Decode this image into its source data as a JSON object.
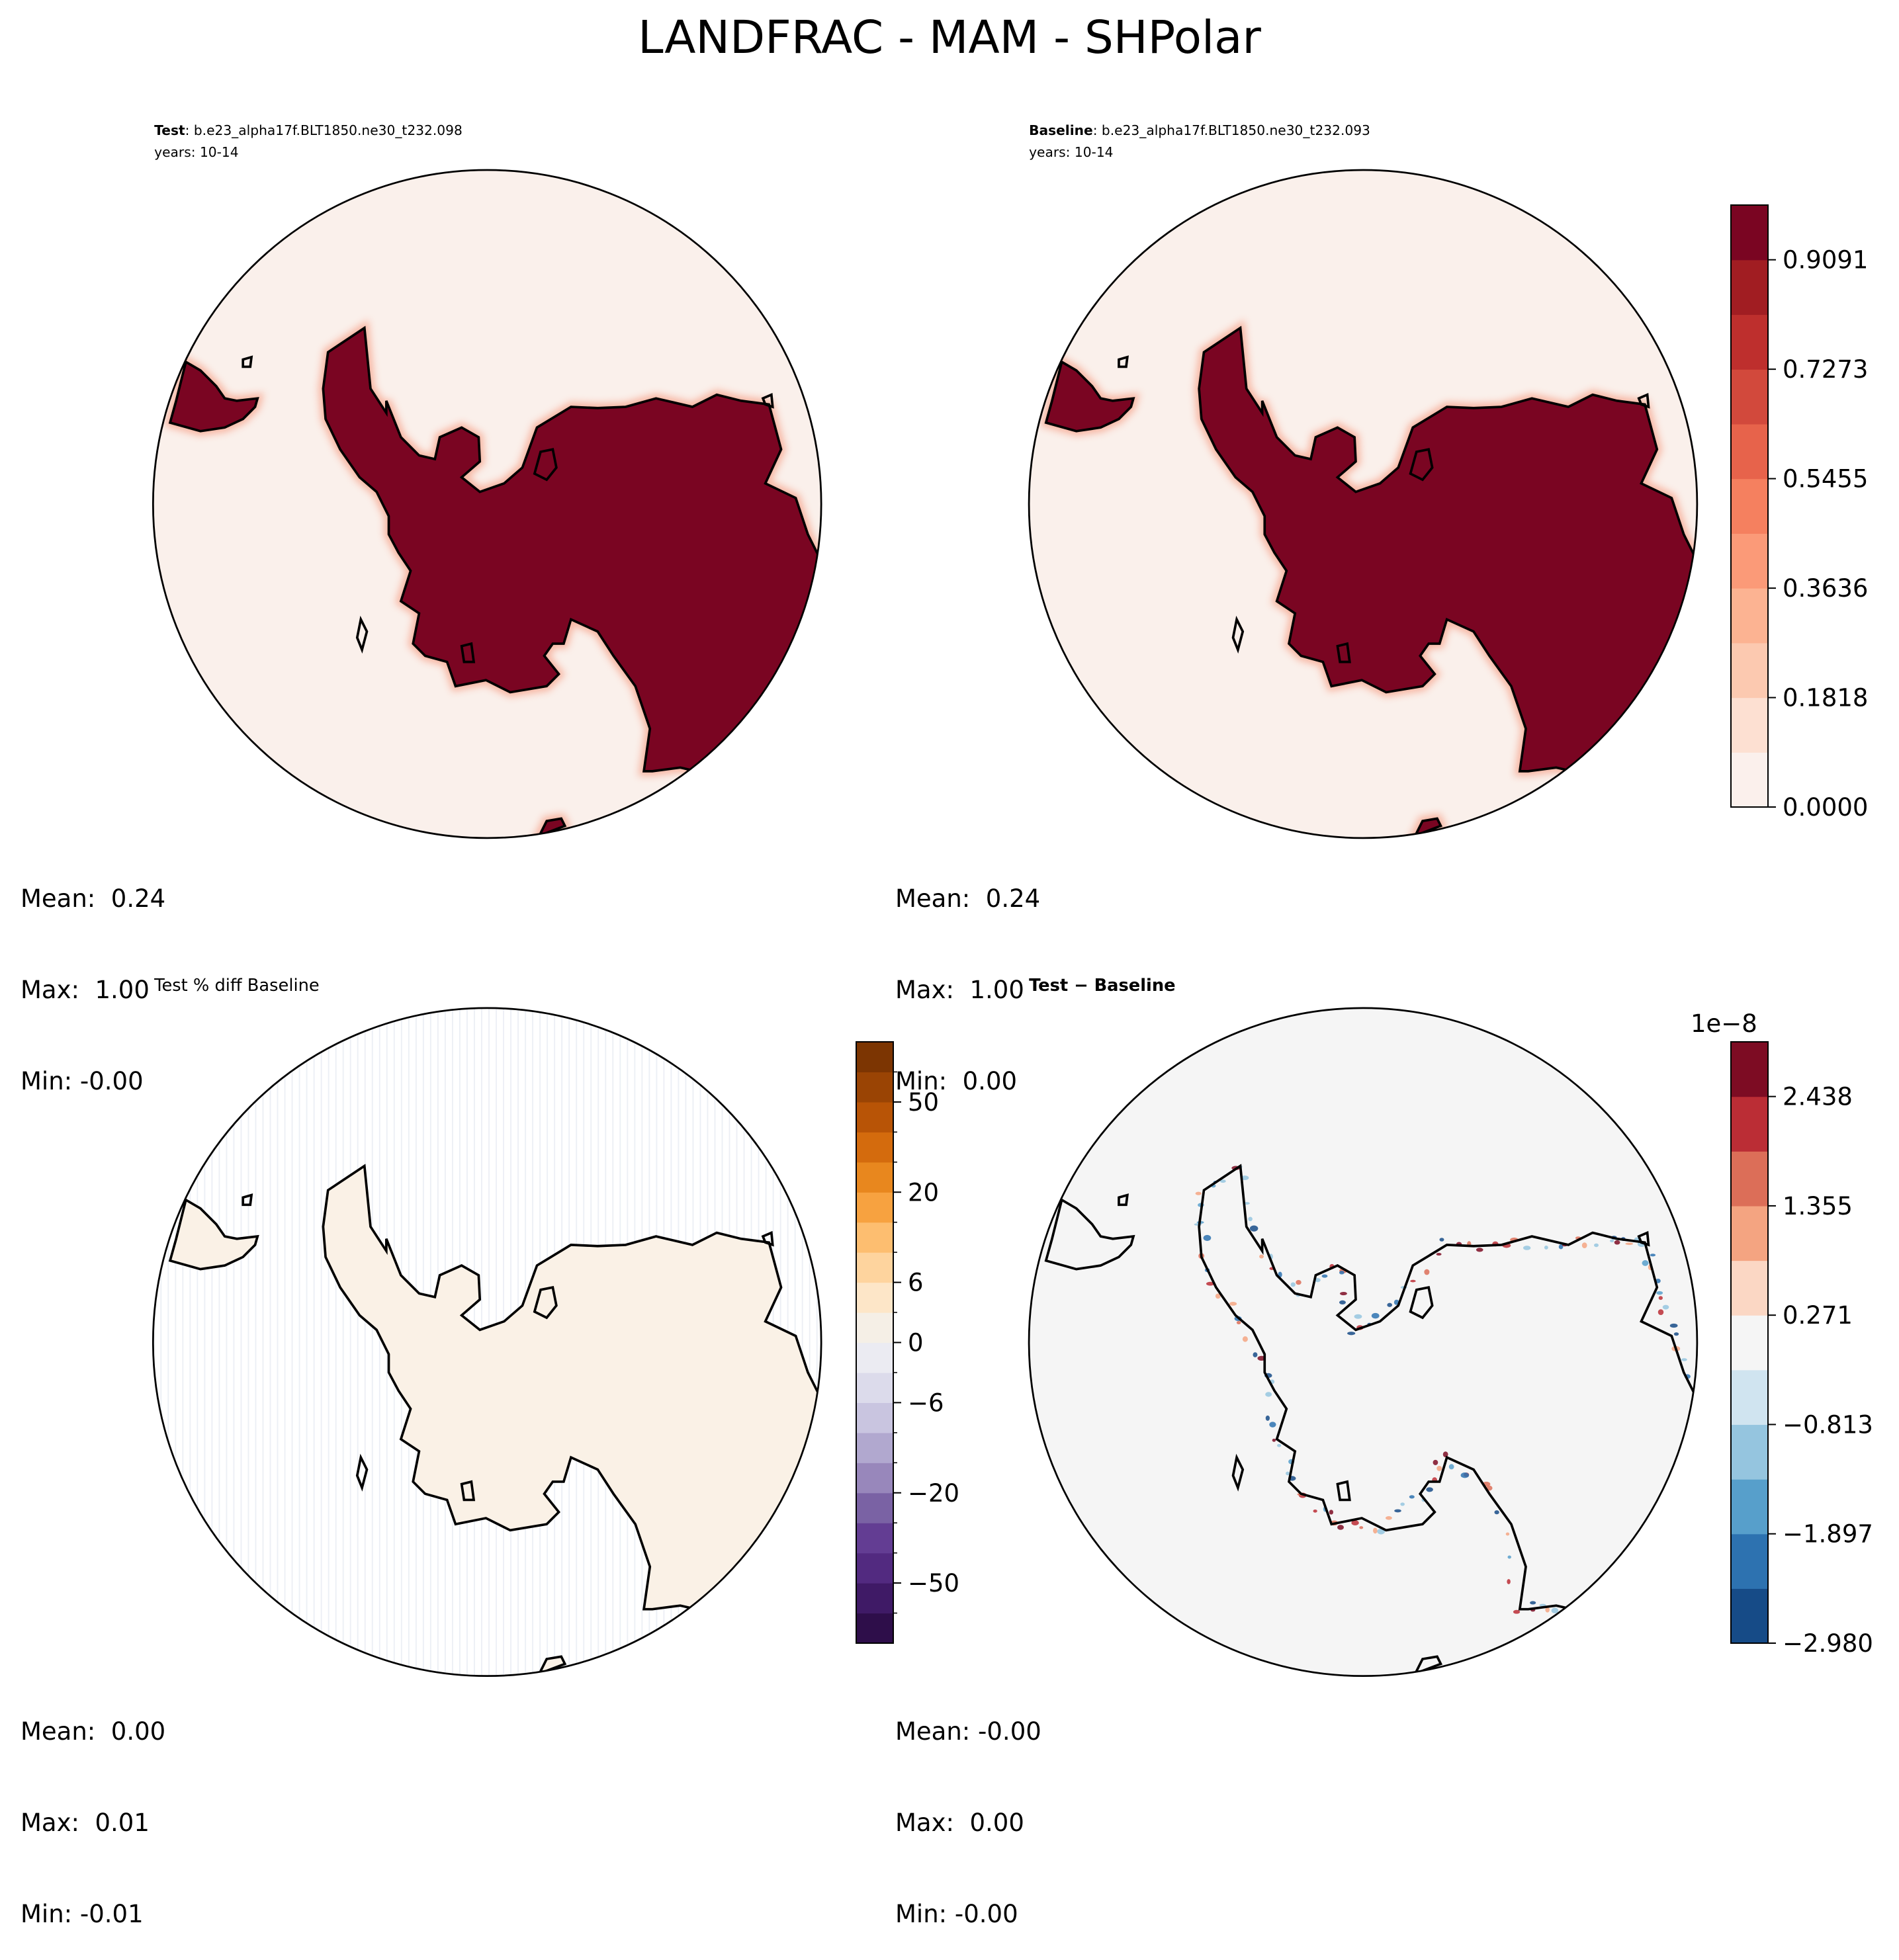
{
  "figure": {
    "title": "LANDFRAC - MAM - SHPolar"
  },
  "panels": [
    {
      "id": "test",
      "label_bold": "Test",
      "case_name": ": b.e23_alpha17f.BLT1850.ne30_t232.098",
      "years": "years: 10-14",
      "title": "",
      "stats": {
        "mean": "Mean:  0.24",
        "max": "Max:  1.00",
        "min": "Min: -0.00"
      }
    },
    {
      "id": "baseline",
      "label_bold": "Baseline",
      "case_name": ": b.e23_alpha17f.BLT1850.ne30_t232.093",
      "years": "years: 10-14",
      "title": "",
      "stats": {
        "mean": "Mean:  0.24",
        "max": "Max:  1.00",
        "min": "Min:  0.00"
      }
    },
    {
      "id": "pctdiff",
      "label_bold": "",
      "case_name": "",
      "years": "",
      "title": "Test % diff Baseline",
      "stats": {
        "mean": "Mean:  0.00",
        "max": "Max:  0.01",
        "min": "Min: -0.01"
      }
    },
    {
      "id": "diff",
      "label_bold": "",
      "case_name": "",
      "years": "",
      "title": "Test − Baseline",
      "stats": {
        "mean": "Mean: -0.00",
        "max": "Max:  0.00",
        "min": "Min: -0.00"
      }
    }
  ],
  "colorbars": {
    "landfrac": {
      "cmap": "Reds",
      "colors": [
        "#fbf0ec",
        "#fde0d2",
        "#fcc9b0",
        "#fcb392",
        "#fb9a78",
        "#f5805f",
        "#e7634b",
        "#d2493c",
        "#be2f2d",
        "#a11d22",
        "#7a0522"
      ],
      "ticks": [
        "0.0000",
        "0.1818",
        "0.3636",
        "0.5455",
        "0.7273",
        "0.9091"
      ]
    },
    "pctdiff": {
      "cmap": "PuOr_r",
      "colors": [
        "#2e0e4a",
        "#3f1a66",
        "#522a80",
        "#633d93",
        "#7a62a4",
        "#9887bb",
        "#b1a8cf",
        "#c9c5e0",
        "#dcdbeb",
        "#ebebf2",
        "#f5efe6",
        "#fde6c8",
        "#fed49e",
        "#fdbe70",
        "#f7a240",
        "#e8871e",
        "#d46b0d",
        "#b85406",
        "#9a4404",
        "#7c3502"
      ],
      "ticks": [
        "−50",
        "−20",
        "−6",
        "0",
        "6",
        "20",
        "50"
      ]
    },
    "diff": {
      "cmap": "RdBu_r",
      "colors": [
        "#164b87",
        "#2d72b0",
        "#579fcb",
        "#95c5df",
        "#d0e4f0",
        "#f5f5f5",
        "#fbd7c4",
        "#f4a481",
        "#dc6e58",
        "#bb2d35",
        "#7d0c23"
      ],
      "ticks": [
        "−2.980",
        "−1.897",
        "−0.813",
        "0.271",
        "1.355",
        "2.438"
      ],
      "offset": "1e−8"
    }
  },
  "map_colors": {
    "land_frac": "#7a0522",
    "ocean_frac": "#faf0eb",
    "pctdiff_bg": "#ffffff",
    "pctdiff_land": "#faf1e6",
    "diff_bg": "#f5f5f5",
    "coast": "#000000"
  }
}
